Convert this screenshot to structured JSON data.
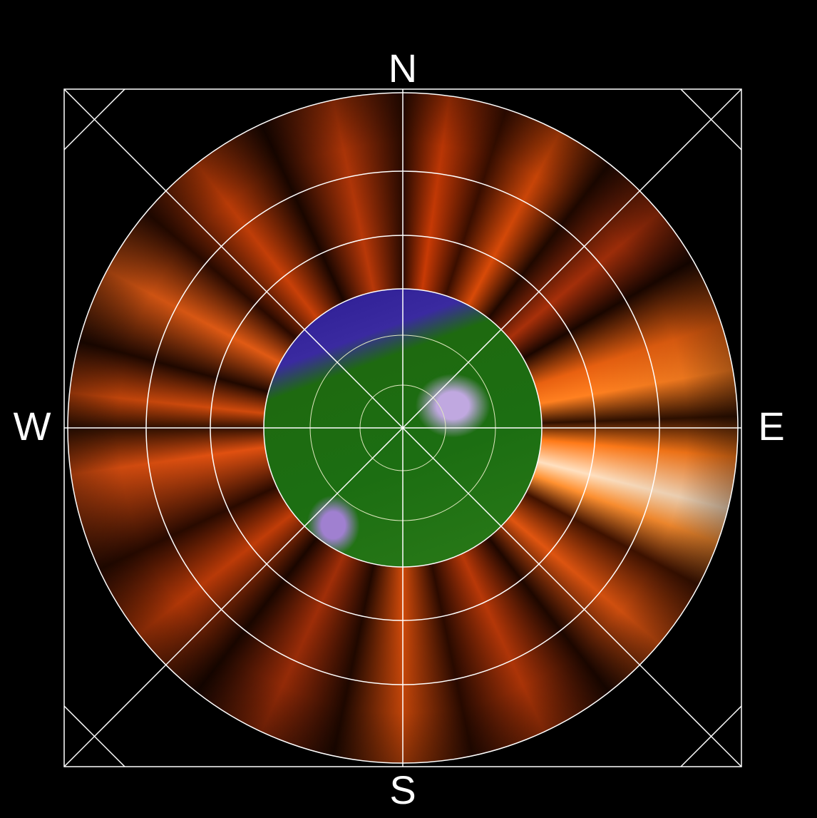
{
  "compass": {
    "north": "N",
    "south": "S",
    "east": "E",
    "west": "W"
  }
}
